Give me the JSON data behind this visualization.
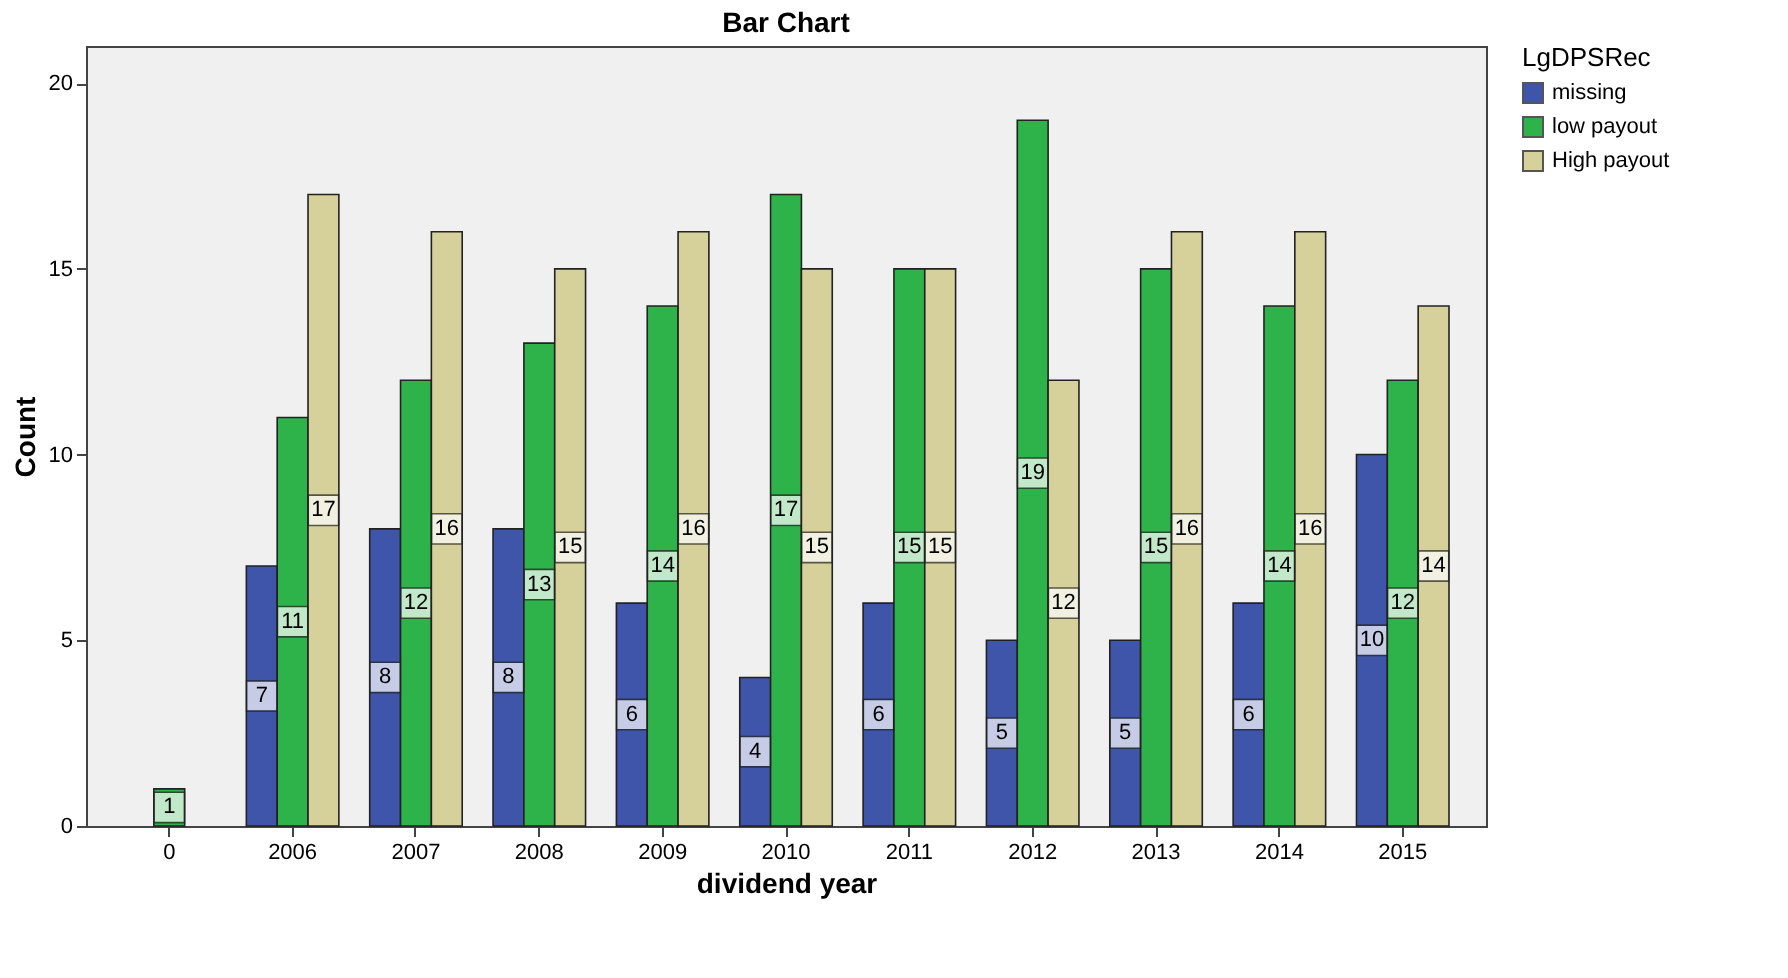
{
  "chart_data": {
    "type": "bar",
    "title": "Bar Chart",
    "xlabel": "dividend year",
    "ylabel": "Count",
    "legend_title": "LgDPSRec",
    "categories": [
      "0",
      "2006",
      "2007",
      "2008",
      "2009",
      "2010",
      "2011",
      "2012",
      "2013",
      "2014",
      "2015"
    ],
    "series": [
      {
        "name": "missing",
        "color": "#3f55a9",
        "values": [
          null,
          7,
          8,
          8,
          6,
          4,
          6,
          5,
          5,
          6,
          10
        ]
      },
      {
        "name": "low payout",
        "color": "#2eb34a",
        "values": [
          1,
          11,
          12,
          13,
          14,
          17,
          15,
          19,
          15,
          14,
          12
        ]
      },
      {
        "name": "High payout",
        "color": "#d6d09b",
        "values": [
          null,
          17,
          16,
          15,
          16,
          15,
          15,
          12,
          16,
          16,
          14
        ]
      }
    ],
    "ylim": [
      0,
      21
    ],
    "yticks": [
      0,
      5,
      10,
      15,
      20
    ],
    "grid": false,
    "legend": "top right",
    "data_labels": true
  }
}
